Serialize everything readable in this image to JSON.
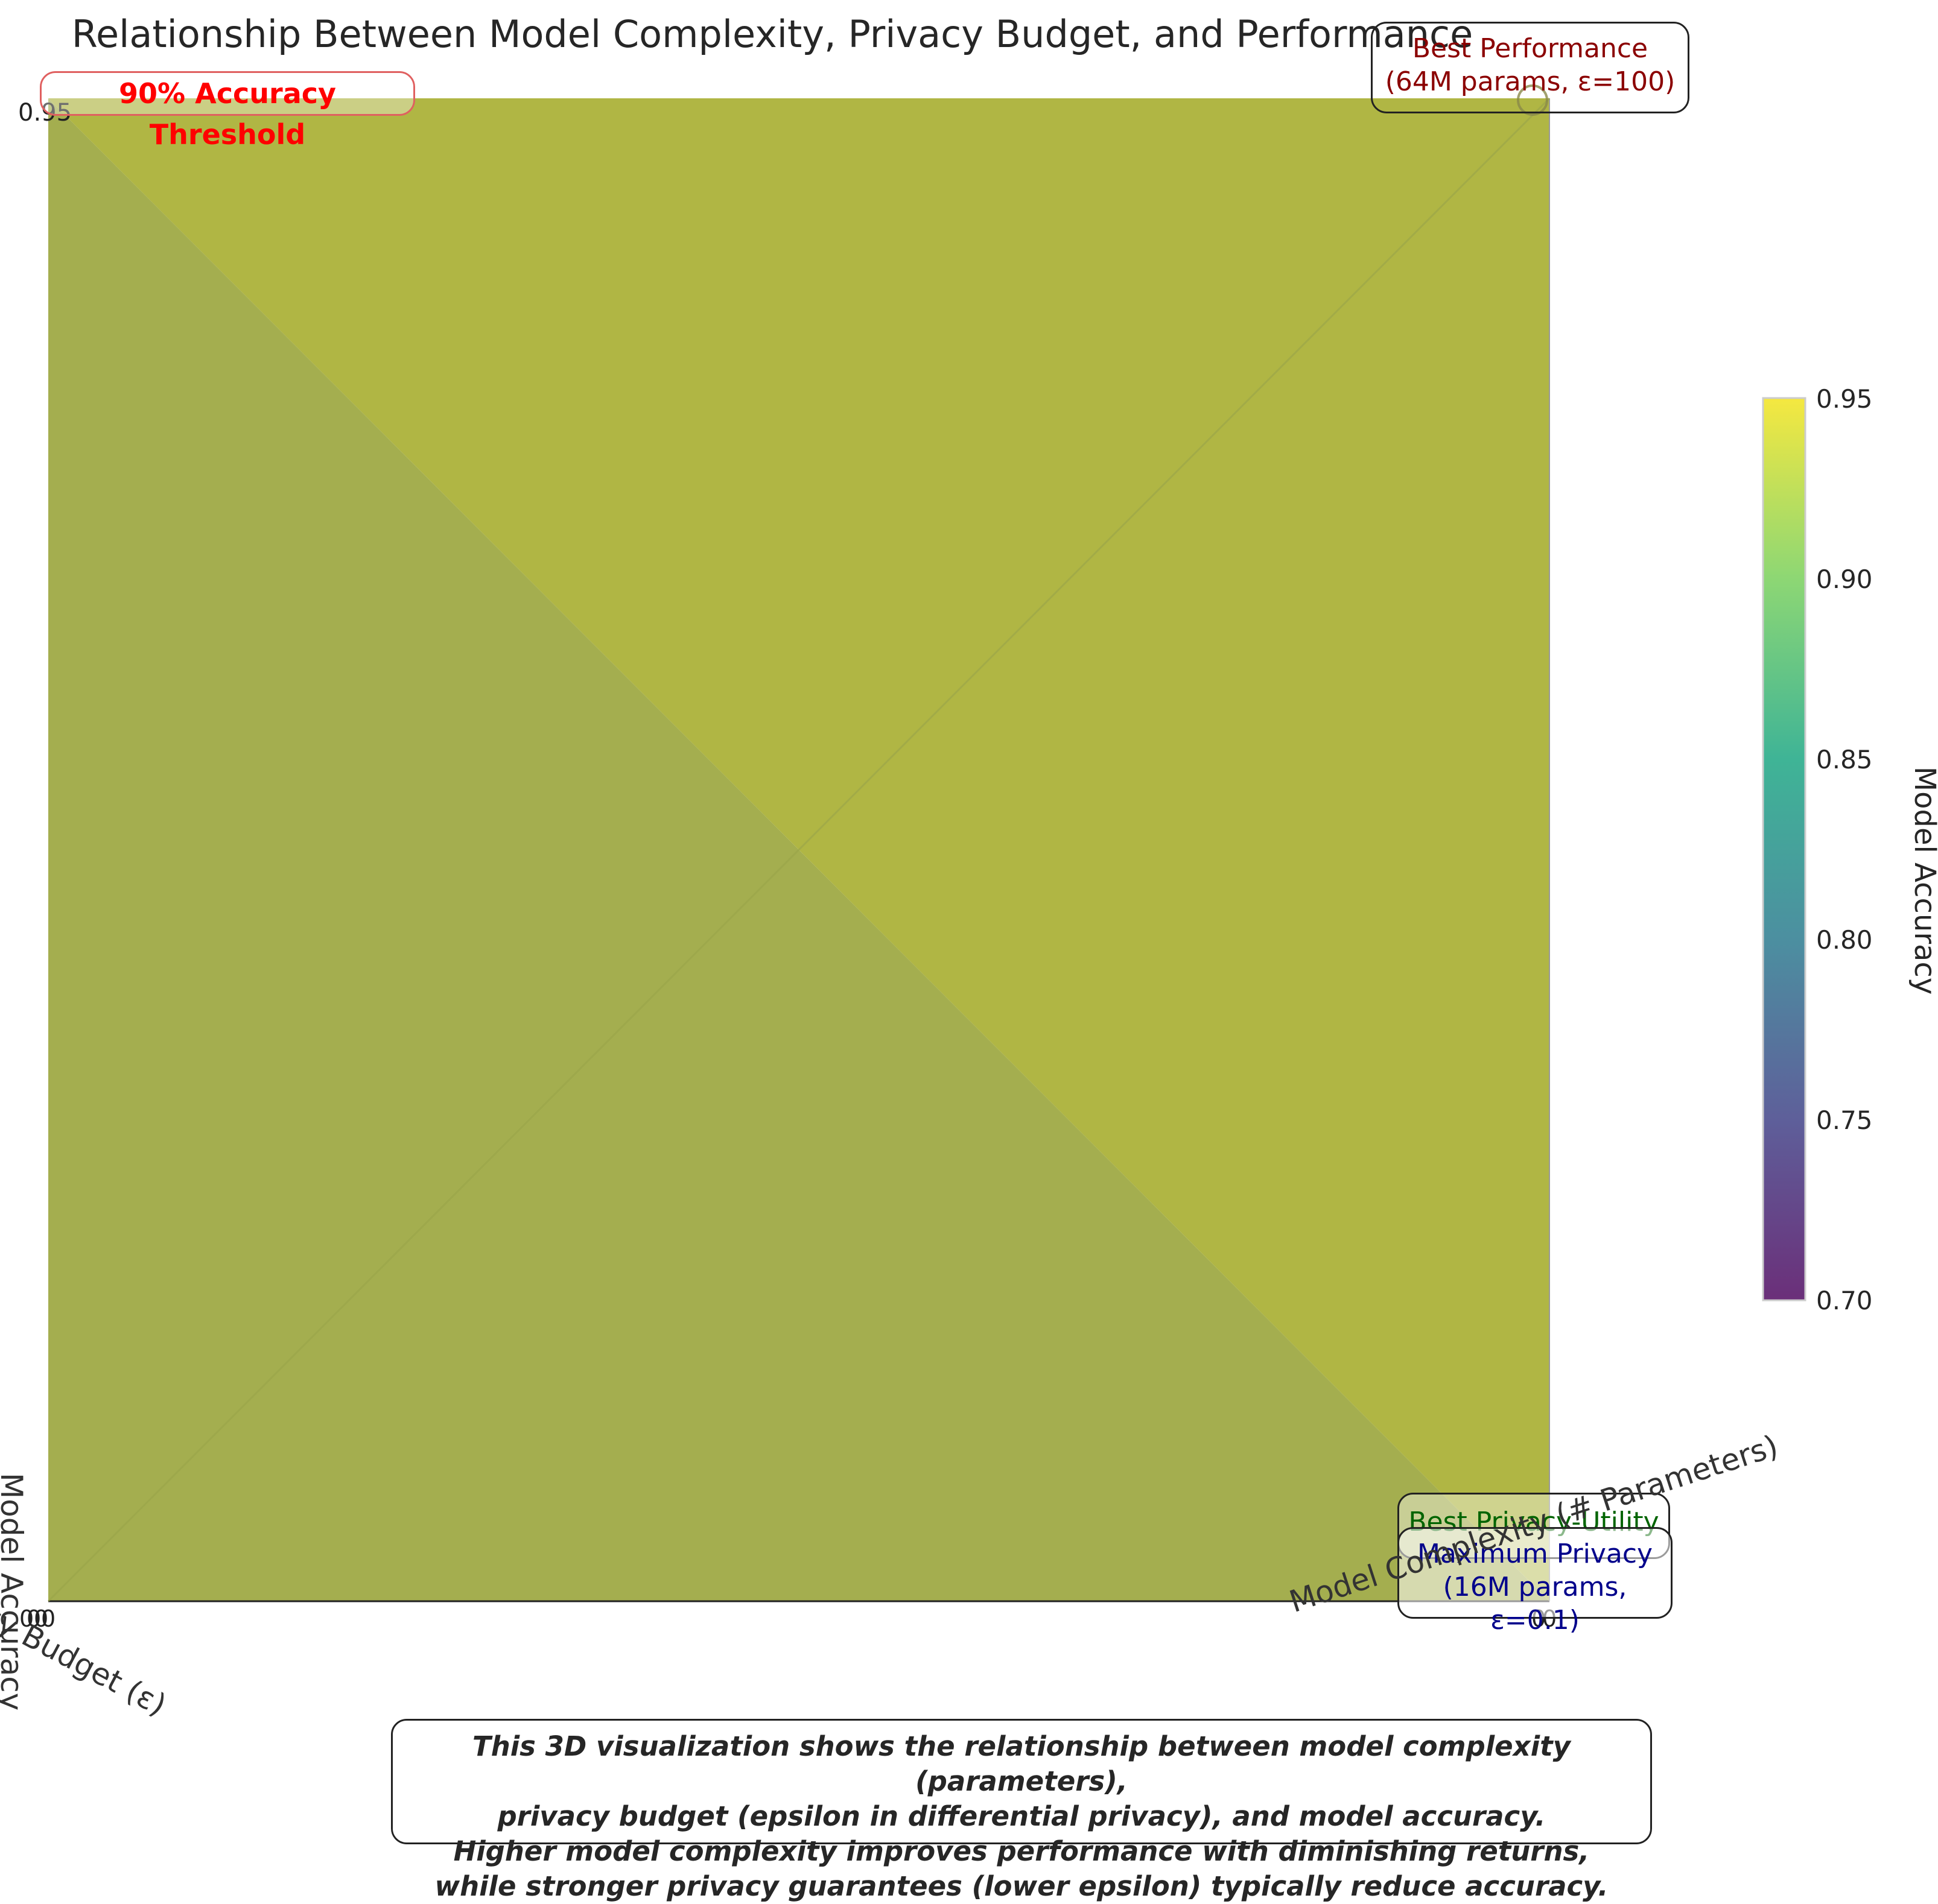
{
  "chart_data": {
    "type": "surface3d",
    "title": "Relationship Between Model Complexity, Privacy Budget, and Performance",
    "xlabel": "Model Complexity (# Parameters)",
    "ylabel": "Privacy Budget (ε)",
    "zlabel": "Model Accuracy",
    "z_tick_top": "0.95",
    "colorbar": {
      "label": "Model Accuracy",
      "range": [
        0.7,
        0.95
      ],
      "ticks": [
        "0.70",
        "0.75",
        "0.80",
        "0.85",
        "0.90",
        "0.95"
      ],
      "colormap": "viridis"
    },
    "surface_color_upper": "#adb33c",
    "surface_color_lower": "#a0ab48",
    "threshold_label": "90% Accuracy Threshold",
    "annotations": [
      {
        "line1": "Best Performance",
        "line2": "(64M params, ε=100)",
        "color": "#8b0000"
      },
      {
        "line1": "Best Privacy-Utility",
        "line2": "",
        "color": "#006400"
      },
      {
        "line1": "Maximum Privacy",
        "line2": "(16M params, ε=0.1)",
        "color": "#00008b"
      }
    ]
  },
  "description": [
    "This 3D visualization shows the relationship between model complexity (parameters),",
    "privacy budget (epsilon in differential privacy), and model accuracy.",
    "Higher model complexity improves performance with diminishing returns,",
    "while stronger privacy guarantees (lower epsilon) typically reduce accuracy."
  ]
}
